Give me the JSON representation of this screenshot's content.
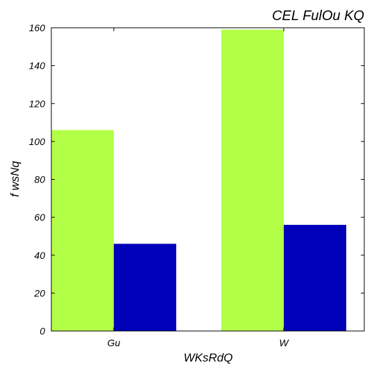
{
  "chart_data": {
    "type": "bar",
    "title": "CEL FulOu KQ",
    "xlabel": "WKsRdQ",
    "ylabel": "f wsNq",
    "categories": [
      "Gu",
      "W"
    ],
    "series": [
      {
        "values": [
          106,
          159
        ],
        "color": "#b3ff47"
      },
      {
        "values": [
          46,
          56
        ],
        "color": "#0000b8"
      }
    ],
    "ylim": [
      0,
      160
    ],
    "yticks": [
      0,
      20,
      40,
      60,
      80,
      100,
      120,
      140,
      160
    ],
    "grid": false,
    "legend": "none"
  }
}
